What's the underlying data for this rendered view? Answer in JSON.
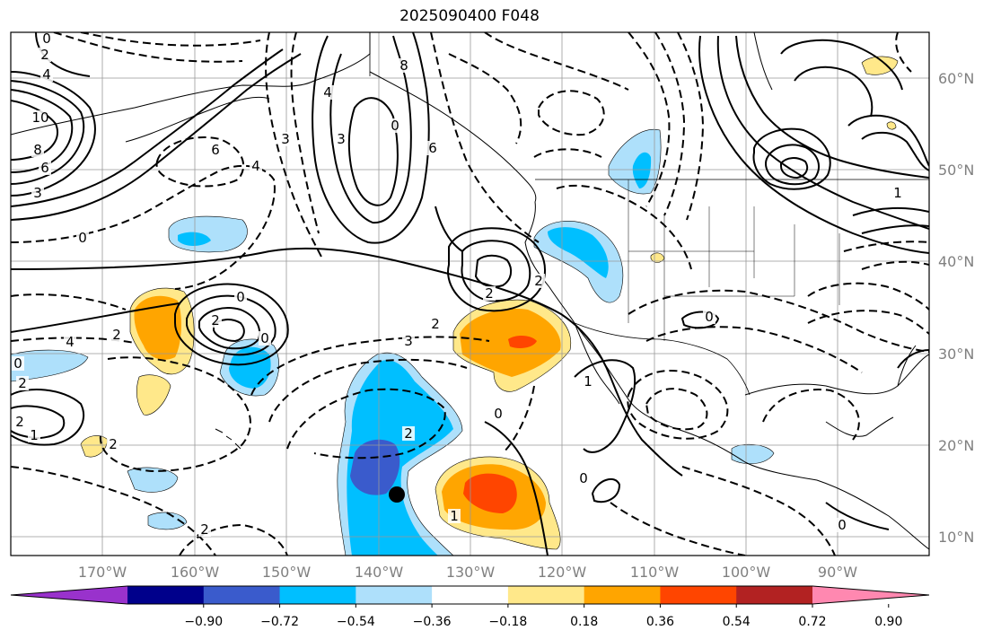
{
  "title": "2025090400 F048",
  "lat_labels": [
    "60°N",
    "50°N",
    "40°N",
    "30°N",
    "20°N",
    "10°N"
  ],
  "lon_labels": [
    "170°W",
    "160°W",
    "150°W",
    "140°W",
    "130°W",
    "120°W",
    "110°W",
    "100°W",
    "90°W"
  ],
  "colorbar": {
    "colors": [
      "#9932cc",
      "#00008b",
      "#3a5bcc",
      "#00bfff",
      "#aee0fb",
      "#ffffff",
      "#ffe88a",
      "#ffa500",
      "#ff4500",
      "#b22222",
      "#ff88b0"
    ],
    "labels": [
      "−0.90",
      "−0.72",
      "−0.54",
      "−0.36",
      "−0.18",
      "0.18",
      "0.36",
      "0.54",
      "0.72",
      "0.90"
    ]
  },
  "contour_labels": [
    "0",
    "2",
    "4",
    "10",
    "8",
    "6",
    "3",
    "6",
    "4",
    "0",
    "2",
    "4",
    "3",
    "0",
    "6",
    "3",
    "4",
    "8",
    "1",
    "2",
    "2",
    "3",
    "2",
    "0",
    "2",
    "0",
    "2",
    "1",
    "2",
    "2",
    "0",
    "0",
    "2",
    "2",
    "1",
    "1",
    "0",
    "0",
    "0"
  ],
  "colors": {
    "neg_light": "#aee0fb",
    "neg_mid": "#00bfff",
    "neg_dark": "#3a5bcc",
    "pos_light": "#ffe88a",
    "pos_mid": "#ffa500",
    "pos_dark": "#ff4500"
  }
}
